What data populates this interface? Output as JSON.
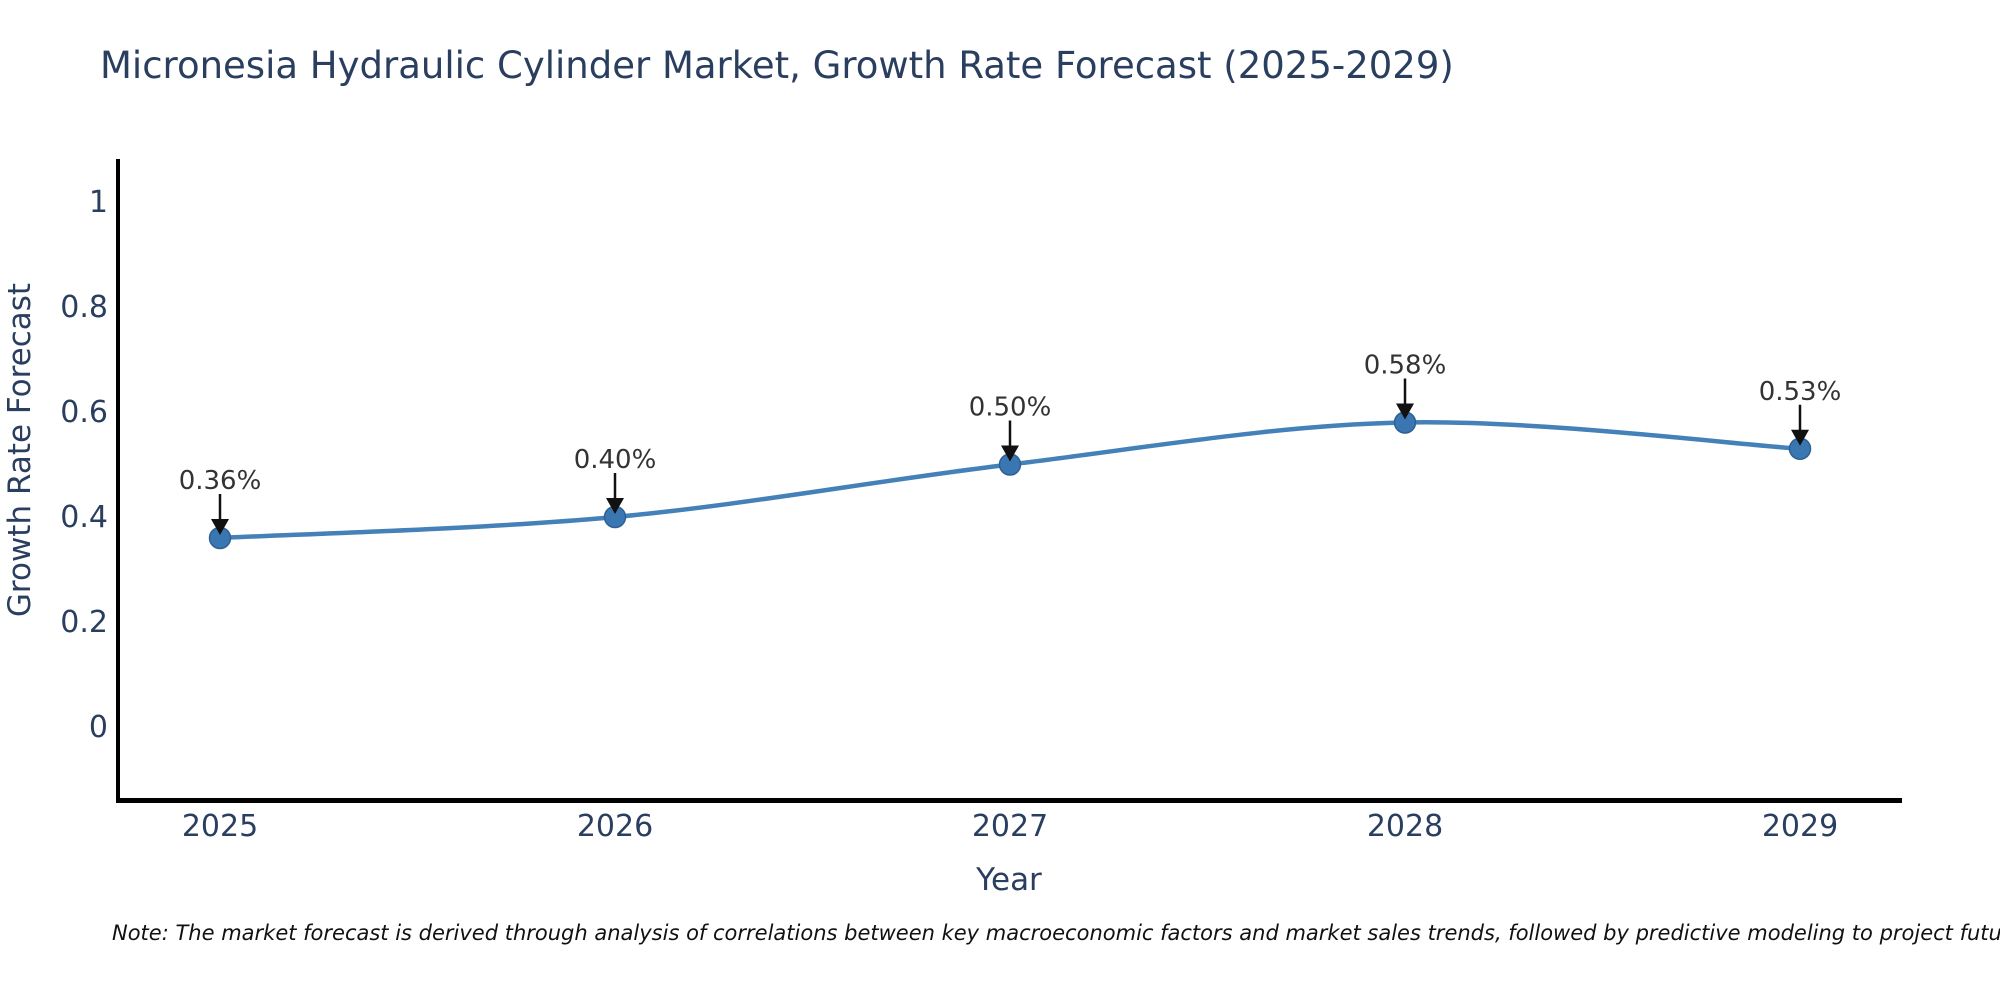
{
  "title": "Micronesia Hydraulic Cylinder Market, Growth Rate Forecast (2025-2029)",
  "note": "Note: The market forecast is derived through analysis of correlations between key macroeconomic factors and market sales trends, followed by predictive modeling to project future sales",
  "chart_data": {
    "type": "line",
    "x": [
      2025,
      2026,
      2027,
      2028,
      2029
    ],
    "x_tick_labels": [
      "2025",
      "2026",
      "2027",
      "2028",
      "2029"
    ],
    "series": [
      {
        "name": "Growth Rate Forecast",
        "values": [
          0.36,
          0.4,
          0.5,
          0.58,
          0.53
        ]
      }
    ],
    "point_labels": [
      "0.36%",
      "0.40%",
      "0.50%",
      "0.58%",
      "0.53%"
    ],
    "xlabel": "Year",
    "ylabel": "Growth Rate Forecast",
    "y_ticks": [
      0,
      0.2,
      0.4,
      0.6,
      0.8,
      1
    ],
    "y_tick_labels": [
      "0",
      "0.2",
      "0.4",
      "0.6",
      "0.8",
      "1"
    ],
    "ylim": [
      -0.14,
      1.08
    ],
    "grid": false,
    "legend_position": "none",
    "line_shape": "spline",
    "annotation_arrows": true,
    "colors": {
      "line": "#4381b8",
      "marker": "#3a77b2",
      "marker_edge": "#2f6091",
      "axis": "#000000",
      "title_text": "#2a3f5f",
      "tick_text": "#2a3f5f",
      "annotation_text": "#333333",
      "arrow": "#111111",
      "note_text": "#111111",
      "background": "#ffffff"
    }
  }
}
